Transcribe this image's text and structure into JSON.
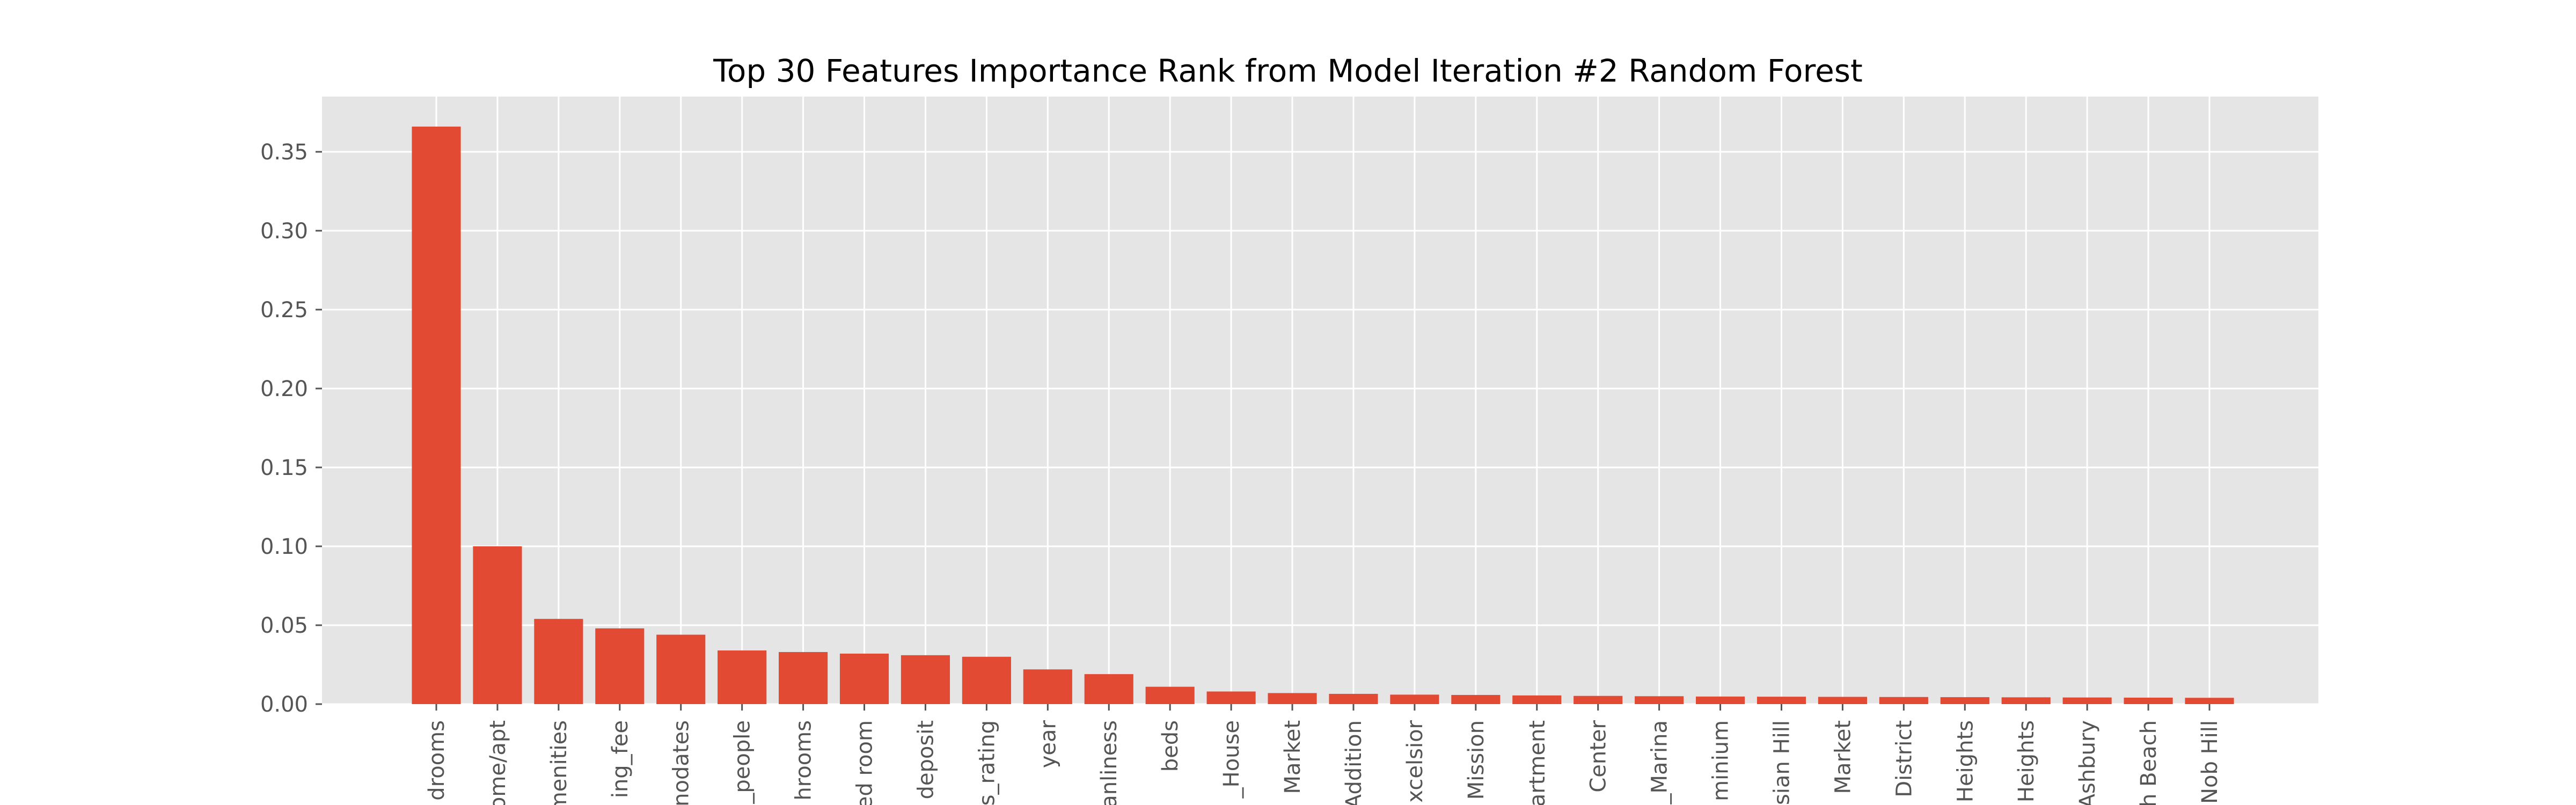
{
  "chart_data": {
    "type": "bar",
    "title": "Top 30 Features Importance Rank from Model Iteration #2 Random Forest",
    "xlabel": "",
    "ylabel": "",
    "ylim": [
      0,
      0.385
    ],
    "yticks": [
      "0.00",
      "0.05",
      "0.10",
      "0.15",
      "0.20",
      "0.25",
      "0.30",
      "0.35"
    ],
    "ytick_values": [
      0,
      0.05,
      0.1,
      0.15,
      0.2,
      0.25,
      0.3,
      0.35
    ],
    "grid": true,
    "style": "ggplot",
    "bar_color": "#E24A33",
    "background_color": "#E5E5E5",
    "grid_color": "#FFFFFF",
    "categories": [
      "drooms",
      "ome/apt",
      "menities",
      "ing_fee",
      "nodates",
      "_people",
      "hrooms",
      "ed room",
      "deposit",
      "s_rating",
      "year",
      "anliness",
      "beds",
      "_House",
      "Market",
      "Addition",
      "xcelsior",
      "Mission",
      "artment",
      "Center",
      "_Marina",
      "minium",
      "sian Hill",
      "Market",
      "District",
      "Heights",
      "Heights",
      "Ashbury",
      "h Beach",
      "Nob Hill"
    ],
    "values": [
      0.366,
      0.1,
      0.054,
      0.048,
      0.044,
      0.034,
      0.033,
      0.032,
      0.031,
      0.03,
      0.022,
      0.019,
      0.011,
      0.008,
      0.007,
      0.0065,
      0.006,
      0.0058,
      0.0055,
      0.0052,
      0.005,
      0.0048,
      0.0047,
      0.0046,
      0.0045,
      0.0044,
      0.0043,
      0.0042,
      0.0041,
      0.004
    ]
  }
}
